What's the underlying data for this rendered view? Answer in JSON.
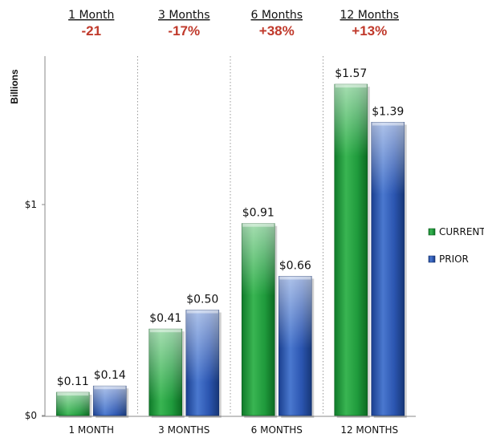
{
  "chart_data": {
    "type": "bar",
    "ylabel": "Billions",
    "ylim": [
      0,
      1.65
    ],
    "yticks": [
      {
        "value": 0,
        "label": "$0"
      },
      {
        "value": 1,
        "label": "$1"
      }
    ],
    "categories": [
      "1 MONTH",
      "3 MONTHS",
      "6 MONTHS",
      "12 MONTHS"
    ],
    "series": [
      {
        "name": "CURRENT",
        "values": [
          0.11,
          0.41,
          0.91,
          1.57
        ],
        "labels": [
          "$0.11",
          "$0.41",
          "$0.91",
          "$1.57"
        ]
      },
      {
        "name": "PRIOR",
        "values": [
          0.14,
          0.5,
          0.66,
          1.39
        ],
        "labels": [
          "$0.14",
          "$0.50",
          "$0.66",
          "$1.39"
        ]
      }
    ],
    "period_headers": [
      {
        "label": "1 Month",
        "change": "-21"
      },
      {
        "label": "3 Months",
        "change": "-17%"
      },
      {
        "label": "6 Months",
        "change": "+38%"
      },
      {
        "label": "12 Months",
        "change": "+13%"
      }
    ],
    "legend_position": "right",
    "grid": "vertical-dotted-separators"
  },
  "colors": {
    "current": "#1f9a3c",
    "prior": "#2b55b0",
    "change_text": "#c0392b",
    "separator": "#9a9a9a"
  }
}
